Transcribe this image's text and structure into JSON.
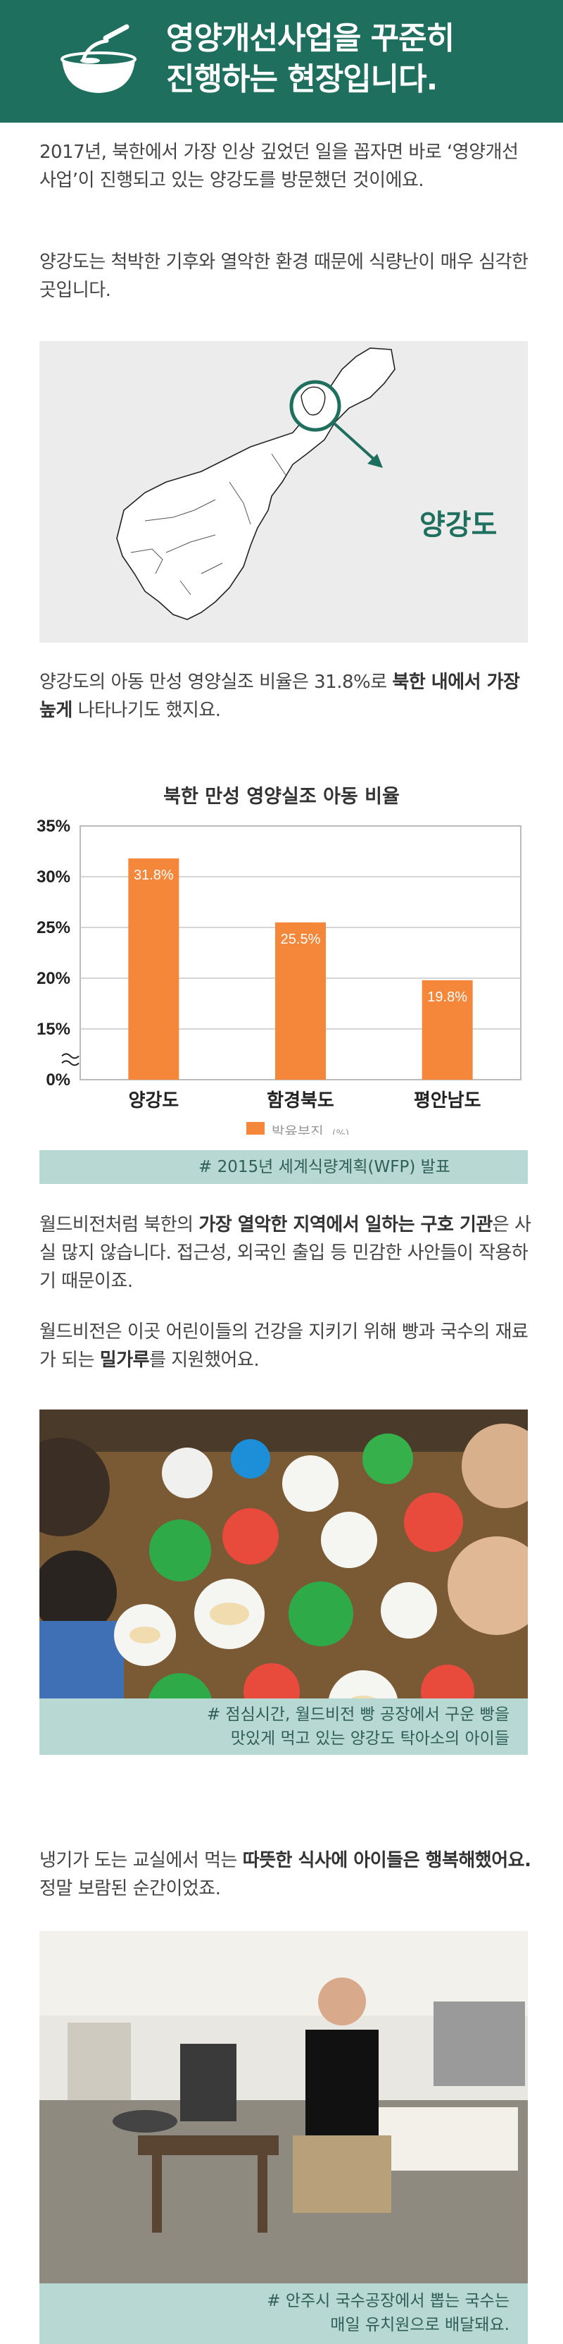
{
  "header": {
    "title_line1": "영양개선사업을 꾸준히",
    "title_line2": "진행하는 현장입니다."
  },
  "intro": {
    "p1": "2017년, 북한에서 가장 인상 깊었던 일을 꼽자면 바로 ‘영양개선사업’이 진행되고 있는 양강도를 방문했던 것이에요.",
    "p2": "양강도는 척박한 기후와 열악한 환경 때문에 식량난이 매우 심각한 곳입니다."
  },
  "map": {
    "label": "양강도"
  },
  "stat": {
    "text_before": "양강도의 아동 만성 영양실조 비율은 31.8%로 ",
    "text_bold": "북한 내에서 가장 높게",
    "text_after": " 나타나기도 했지요."
  },
  "chart_data": {
    "type": "bar",
    "title": "북한 만성 영양실조 아동 비율",
    "categories": [
      "양강도",
      "함경북도",
      "평안남도"
    ],
    "series": [
      {
        "name": "발육부진(%)",
        "values": [
          31.8,
          25.5,
          19.8
        ]
      }
    ],
    "value_labels": [
      "31.8%",
      "25.5%",
      "19.8%"
    ],
    "y_ticks": [
      "0%",
      "15%",
      "20%",
      "25%",
      "30%",
      "35%"
    ],
    "ylim": [
      0,
      35
    ],
    "axis_break": true,
    "grid": true,
    "legend": "bottom",
    "legend_label": "발육부진",
    "legend_unit": "(%)",
    "color": "#f4873a",
    "source": "# 2015년 세계식량계획(WFP) 발표"
  },
  "para3": {
    "a": "월드비전처럼 북한의 ",
    "b": "가장 열악한 지역에서 일하는 구호 기관",
    "c": "은 사실 많지 않습니다. 접근성, 외국인 출입 등 민감한 사안들이 작용하기 때문이죠."
  },
  "para4": {
    "a": "월드비전은 이곳 어린이들의 건강을 지키기 위해 빵과 국수의 재료가 되는 ",
    "b": "밀가루",
    "c": "를 지원했어요."
  },
  "photo1": {
    "caption_line1": "# 점심시간, 월드비전 빵 공장에서 구운 빵을",
    "caption_line2": "맛있게 먹고 있는 양강도 탁아소의 아이들"
  },
  "para5": {
    "a": "냉기가 도는 교실에서 먹는 ",
    "b": "따뜻한 식사에 아이들은 행복해했어요.",
    "c": " 정말 보람된 순간이었죠."
  },
  "photo2": {
    "caption_line1": "# 안주시 국수공장에서 뽑는 국수는",
    "caption_line2": "매일 유치원으로 배달돼요."
  }
}
